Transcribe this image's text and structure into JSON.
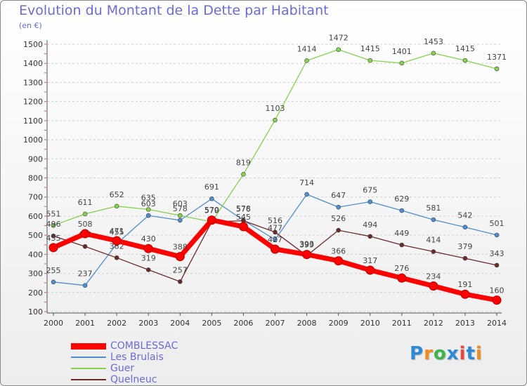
{
  "title": "Evolution du Montant de la Dette par Habitant",
  "unit": "(en €)",
  "brand_logo": "Proxiti",
  "chart_data": {
    "type": "line",
    "x": [
      2000,
      2001,
      2002,
      2003,
      2004,
      2005,
      2006,
      2007,
      2008,
      2009,
      2010,
      2011,
      2012,
      2013,
      2014
    ],
    "ylim": [
      100,
      1500
    ],
    "yticks": [
      100,
      200,
      300,
      400,
      500,
      600,
      700,
      800,
      900,
      1000,
      1100,
      1200,
      1300,
      1400,
      1500
    ],
    "grid": "horizontal dashed",
    "legend_position": "bottom-left",
    "series": [
      {
        "name": "COMBLESSAC",
        "color": "#ff0000",
        "values": [
          435,
          508,
          471,
          430,
          388,
          579,
          545,
          427,
          399,
          366,
          317,
          276,
          234,
          191,
          160
        ]
      },
      {
        "name": "Les Brulais",
        "color": "#4f8fd0",
        "values": [
          255,
          237,
          455,
          603,
          578,
          691,
          578,
          477,
          714,
          647,
          675,
          629,
          581,
          542,
          501
        ]
      },
      {
        "name": "Guer",
        "color": "#86d14e",
        "values": [
          551,
          611,
          652,
          635,
          603,
          570,
          819,
          1103,
          1414,
          1472,
          1415,
          1401,
          1453,
          1415,
          1371
        ]
      },
      {
        "name": "Quelneuc",
        "color": "#6b2a2a",
        "values": [
          496,
          441,
          382,
          319,
          257,
          570,
          576,
          516,
          393,
          526,
          494,
          449,
          414,
          379,
          343
        ]
      }
    ]
  }
}
